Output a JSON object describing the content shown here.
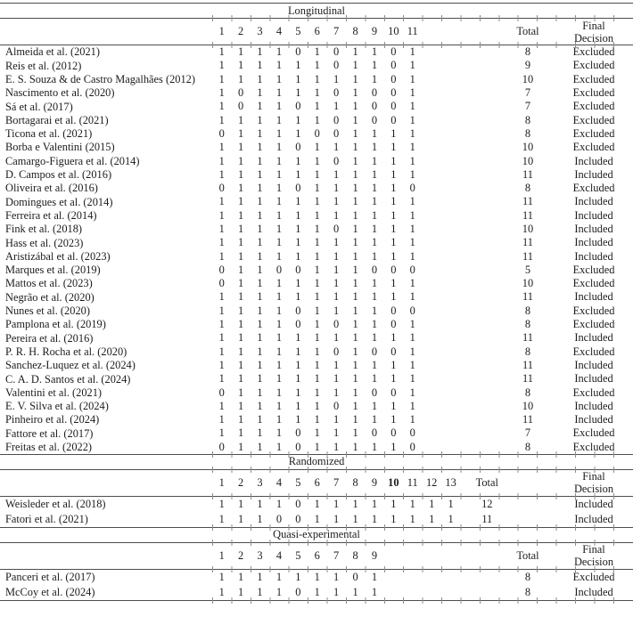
{
  "colors": {
    "text": "#1c1c1c",
    "rule_line": "#4d4d4d",
    "tick_mark": "#8c8c8c",
    "background": "#ffffff"
  },
  "sections": [
    {
      "title": "Longitudinal",
      "criteria": [
        "1",
        "2",
        "3",
        "4",
        "5",
        "6",
        "7",
        "8",
        "9",
        "10",
        "11"
      ],
      "bold_criterion": null,
      "total_label": "Total",
      "decision_label_line1": "Final",
      "decision_label_line2": "Decision",
      "rows": [
        {
          "study": "Almeida et al. (2021)",
          "scores": [
            1,
            1,
            1,
            1,
            0,
            1,
            0,
            1,
            1,
            0,
            1
          ],
          "total": 8,
          "decision": "Excluded"
        },
        {
          "study": "Reis et al. (2012)",
          "scores": [
            1,
            1,
            1,
            1,
            1,
            1,
            0,
            1,
            1,
            0,
            1
          ],
          "total": 9,
          "decision": "Excluded"
        },
        {
          "study": "E. S. Souza & de Castro Magalhães (2012)",
          "scores": [
            1,
            1,
            1,
            1,
            1,
            1,
            1,
            1,
            1,
            0,
            1
          ],
          "total": 10,
          "decision": "Excluded"
        },
        {
          "study": "Nascimento et al. (2020)",
          "scores": [
            1,
            0,
            1,
            1,
            1,
            1,
            0,
            1,
            0,
            0,
            1
          ],
          "total": 7,
          "decision": "Excluded"
        },
        {
          "study": "Sá et al. (2017)",
          "scores": [
            1,
            0,
            1,
            1,
            0,
            1,
            1,
            1,
            0,
            0,
            1
          ],
          "total": 7,
          "decision": "Excluded"
        },
        {
          "study": "Bortagarai et al. (2021)",
          "scores": [
            1,
            1,
            1,
            1,
            1,
            1,
            0,
            1,
            0,
            0,
            1
          ],
          "total": 8,
          "decision": "Excluded"
        },
        {
          "study": "Ticona et al. (2021)",
          "scores": [
            0,
            1,
            1,
            1,
            1,
            0,
            0,
            1,
            1,
            1,
            1
          ],
          "total": 8,
          "decision": "Excluded"
        },
        {
          "study": "Borba e Valentini (2015)",
          "scores": [
            1,
            1,
            1,
            1,
            0,
            1,
            1,
            1,
            1,
            1,
            1
          ],
          "total": 10,
          "decision": "Excluded"
        },
        {
          "study": "Camargo-Figuera et al. (2014)",
          "scores": [
            1,
            1,
            1,
            1,
            1,
            1,
            0,
            1,
            1,
            1,
            1
          ],
          "total": 10,
          "decision": "Included"
        },
        {
          "study": "D. Campos et al. (2016)",
          "scores": [
            1,
            1,
            1,
            1,
            1,
            1,
            1,
            1,
            1,
            1,
            1
          ],
          "total": 11,
          "decision": "Included"
        },
        {
          "study": "Oliveira et al. (2016)",
          "scores": [
            0,
            1,
            1,
            1,
            0,
            1,
            1,
            1,
            1,
            1,
            0
          ],
          "total": 8,
          "decision": "Excluded"
        },
        {
          "study": "Domingues et al. (2014)",
          "scores": [
            1,
            1,
            1,
            1,
            1,
            1,
            1,
            1,
            1,
            1,
            1
          ],
          "total": 11,
          "decision": "Included"
        },
        {
          "study": "Ferreira et al. (2014)",
          "scores": [
            1,
            1,
            1,
            1,
            1,
            1,
            1,
            1,
            1,
            1,
            1
          ],
          "total": 11,
          "decision": "Included"
        },
        {
          "study": "Fink et al. (2018)",
          "scores": [
            1,
            1,
            1,
            1,
            1,
            1,
            0,
            1,
            1,
            1,
            1
          ],
          "total": 10,
          "decision": "Included"
        },
        {
          "study": "Hass et al. (2023)",
          "scores": [
            1,
            1,
            1,
            1,
            1,
            1,
            1,
            1,
            1,
            1,
            1
          ],
          "total": 11,
          "decision": "Included"
        },
        {
          "study": "Aristizábal et al. (2023)",
          "scores": [
            1,
            1,
            1,
            1,
            1,
            1,
            1,
            1,
            1,
            1,
            1
          ],
          "total": 11,
          "decision": "Included"
        },
        {
          "study": "Marques et al. (2019)",
          "scores": [
            0,
            1,
            1,
            0,
            0,
            1,
            1,
            1,
            0,
            0,
            0
          ],
          "total": 5,
          "decision": "Excluded"
        },
        {
          "study": "Mattos et al. (2023)",
          "scores": [
            0,
            1,
            1,
            1,
            1,
            1,
            1,
            1,
            1,
            1,
            1
          ],
          "total": 10,
          "decision": "Excluded"
        },
        {
          "study": "Negrão et al. (2020)",
          "scores": [
            1,
            1,
            1,
            1,
            1,
            1,
            1,
            1,
            1,
            1,
            1
          ],
          "total": 11,
          "decision": "Included"
        },
        {
          "study": "Nunes et al. (2020)",
          "scores": [
            1,
            1,
            1,
            1,
            0,
            1,
            1,
            1,
            1,
            0,
            0
          ],
          "total": 8,
          "decision": "Excluded"
        },
        {
          "study": "Pamplona et al. (2019)",
          "scores": [
            1,
            1,
            1,
            1,
            0,
            1,
            0,
            1,
            1,
            0,
            1
          ],
          "total": 8,
          "decision": "Excluded"
        },
        {
          "study": "Pereira et al. (2016)",
          "scores": [
            1,
            1,
            1,
            1,
            1,
            1,
            1,
            1,
            1,
            1,
            1
          ],
          "total": 11,
          "decision": "Included"
        },
        {
          "study": "P. R. H. Rocha et al. (2020)",
          "scores": [
            1,
            1,
            1,
            1,
            1,
            1,
            0,
            1,
            0,
            0,
            1
          ],
          "total": 8,
          "decision": "Excluded"
        },
        {
          "study": "Sanchez-Luquez et al. (2024)",
          "scores": [
            1,
            1,
            1,
            1,
            1,
            1,
            1,
            1,
            1,
            1,
            1
          ],
          "total": 11,
          "decision": "Included"
        },
        {
          "study": "C. A. D. Santos et al. (2024)",
          "scores": [
            1,
            1,
            1,
            1,
            1,
            1,
            1,
            1,
            1,
            1,
            1
          ],
          "total": 11,
          "decision": "Included"
        },
        {
          "study": "Valentini et al. (2021)",
          "scores": [
            0,
            1,
            1,
            1,
            1,
            1,
            1,
            1,
            0,
            0,
            1
          ],
          "total": 8,
          "decision": "Excluded"
        },
        {
          "study": "E. V. Silva et al. (2024)",
          "scores": [
            1,
            1,
            1,
            1,
            1,
            1,
            0,
            1,
            1,
            1,
            1
          ],
          "total": 10,
          "decision": "Included"
        },
        {
          "study": "Pinheiro et al. (2024)",
          "scores": [
            1,
            1,
            1,
            1,
            1,
            1,
            1,
            1,
            1,
            1,
            1
          ],
          "total": 11,
          "decision": "Included"
        },
        {
          "study": "Fattore et al. (2017)",
          "scores": [
            1,
            1,
            1,
            1,
            0,
            1,
            1,
            1,
            0,
            0,
            0
          ],
          "total": 7,
          "decision": "Excluded"
        },
        {
          "study": "Freitas et al. (2022)",
          "scores": [
            0,
            1,
            1,
            1,
            0,
            1,
            1,
            1,
            1,
            1,
            0
          ],
          "total": 8,
          "decision": "Excluded"
        }
      ]
    },
    {
      "title": "Randomized",
      "criteria": [
        "1",
        "2",
        "3",
        "4",
        "5",
        "6",
        "7",
        "8",
        "9",
        "10",
        "11",
        "12",
        "13"
      ],
      "bold_criterion": "10",
      "total_label": "Total",
      "decision_label_line1": "Final",
      "decision_label_line2": "Decision",
      "rows": [
        {
          "study": "Weisleder et al. (2018)",
          "scores": [
            1,
            1,
            1,
            1,
            0,
            1,
            1,
            1,
            1,
            1,
            1,
            1,
            1
          ],
          "total": 12,
          "decision": "Included"
        },
        {
          "study": "Fatori et al. (2021)",
          "scores": [
            1,
            1,
            1,
            0,
            0,
            1,
            1,
            1,
            1,
            1,
            1,
            1,
            1
          ],
          "total": 11,
          "decision": "Included"
        }
      ]
    },
    {
      "title": "Quasi-experimental",
      "criteria": [
        "1",
        "2",
        "3",
        "4",
        "5",
        "6",
        "7",
        "8",
        "9"
      ],
      "bold_criterion": null,
      "total_label": "Total",
      "decision_label_line1": "Final",
      "decision_label_line2": "Decision",
      "rows": [
        {
          "study": "Panceri et al. (2017)",
          "scores": [
            1,
            1,
            1,
            1,
            1,
            1,
            1,
            0,
            1
          ],
          "total": 8,
          "decision": "Excluded"
        },
        {
          "study": "McCoy et al. (2024)",
          "scores": [
            1,
            1,
            1,
            1,
            0,
            1,
            1,
            1,
            1
          ],
          "total": 8,
          "decision": "Included"
        }
      ]
    }
  ]
}
